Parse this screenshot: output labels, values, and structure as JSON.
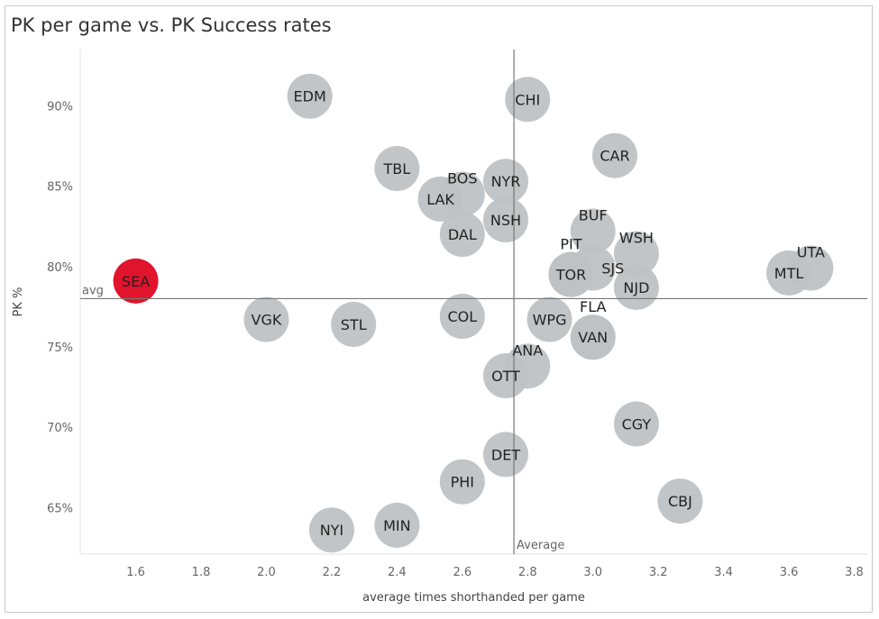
{
  "chart_data": {
    "type": "scatter",
    "title": "PK per game  vs. PK Success rates",
    "xlabel": "average times shorthanded per game",
    "ylabel": "PK %",
    "xlim": [
      1.43,
      3.84
    ],
    "ylim": [
      62.1,
      93.5
    ],
    "x_ticks": [
      "1.6",
      "1.8",
      "2.0",
      "2.2",
      "2.4",
      "2.6",
      "2.8",
      "3.0",
      "3.2",
      "3.4",
      "3.6",
      "3.8"
    ],
    "y_ticks": [
      "65%",
      "70%",
      "75%",
      "80%",
      "85%",
      "90%"
    ],
    "grid": false,
    "reference_lines": {
      "x": {
        "value": 2.758,
        "label": "Average"
      },
      "y": {
        "value": 78.0,
        "label": "avg"
      }
    },
    "colors": {
      "default": "#bfc2c4",
      "highlight": "#e0142c"
    },
    "points": [
      {
        "team": "SEA",
        "x": 1.6,
        "y": 79.1,
        "highlight": true
      },
      {
        "team": "VGK",
        "x": 2.0,
        "y": 76.7
      },
      {
        "team": "STL",
        "x": 2.267,
        "y": 76.4
      },
      {
        "team": "EDM",
        "x": 2.133,
        "y": 90.6
      },
      {
        "team": "TBL",
        "x": 2.4,
        "y": 86.1
      },
      {
        "team": "LAK",
        "x": 2.533,
        "y": 84.2
      },
      {
        "team": "BOS",
        "x": 2.6,
        "y": 84.5
      },
      {
        "team": "DAL",
        "x": 2.6,
        "y": 82.0
      },
      {
        "team": "COL",
        "x": 2.6,
        "y": 76.9
      },
      {
        "team": "PHI",
        "x": 2.6,
        "y": 66.6
      },
      {
        "team": "NYI",
        "x": 2.2,
        "y": 63.6
      },
      {
        "team": "MIN",
        "x": 2.4,
        "y": 63.9
      },
      {
        "team": "NYR",
        "x": 2.733,
        "y": 85.3
      },
      {
        "team": "NSH",
        "x": 2.733,
        "y": 82.9
      },
      {
        "team": "OTT",
        "x": 2.733,
        "y": 73.2
      },
      {
        "team": "DET",
        "x": 2.733,
        "y": 68.3
      },
      {
        "team": "ANA",
        "x": 2.8,
        "y": 73.8
      },
      {
        "team": "CHI",
        "x": 2.8,
        "y": 90.4
      },
      {
        "team": "WPG",
        "x": 2.867,
        "y": 76.7
      },
      {
        "team": "TOR",
        "x": 2.933,
        "y": 79.5
      },
      {
        "team": "PIT",
        "x": 2.933,
        "y": 79.5
      },
      {
        "team": "SJS",
        "x": 3.0,
        "y": 79.9
      },
      {
        "team": "BUF",
        "x": 3.0,
        "y": 82.2
      },
      {
        "team": "VAN",
        "x": 3.0,
        "y": 75.6
      },
      {
        "team": "FLA",
        "x": 3.0,
        "y": 75.6
      },
      {
        "team": "CAR",
        "x": 3.067,
        "y": 86.9
      },
      {
        "team": "WSH",
        "x": 3.133,
        "y": 80.8
      },
      {
        "team": "NJD",
        "x": 3.133,
        "y": 78.7
      },
      {
        "team": "CGY",
        "x": 3.133,
        "y": 70.2
      },
      {
        "team": "CBJ",
        "x": 3.267,
        "y": 65.4
      },
      {
        "team": "MTL",
        "x": 3.6,
        "y": 79.6
      },
      {
        "team": "UTA",
        "x": 3.667,
        "y": 79.9
      }
    ]
  }
}
